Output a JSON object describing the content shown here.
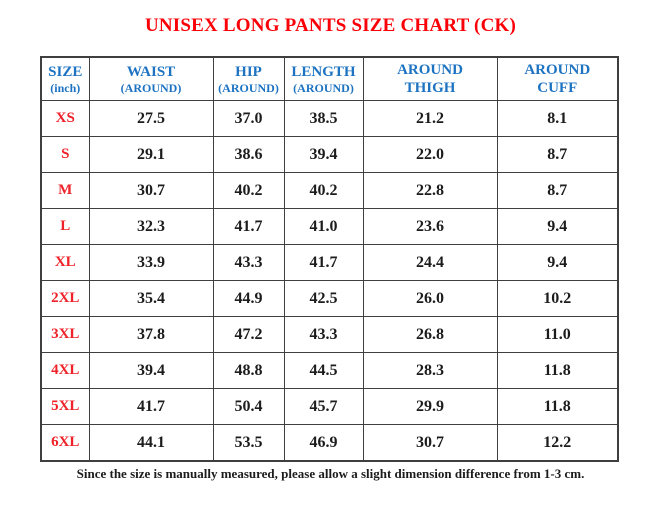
{
  "title": "UNISEX LONG PANTS SIZE CHART (CK)",
  "footer_note": "Since the size is manually measured, please allow a slight dimension difference from 1-3 cm.",
  "colors": {
    "title_red": "#fb0007",
    "size_label_red": "#ee2228",
    "header_blue": "#1d73c2",
    "cell_text": "#1c1c1c",
    "border": "#3f3f3f"
  },
  "table": {
    "headers": [
      {
        "line1": "SIZE",
        "line2": "(inch)"
      },
      {
        "line1": "WAIST",
        "line2": "(AROUND)"
      },
      {
        "line1": "HIP",
        "line2": "(AROUND)"
      },
      {
        "line1": "LENGTH",
        "line2": "(AROUND)"
      },
      {
        "line1": "AROUND",
        "line2": "THIGH"
      },
      {
        "line1": "AROUND",
        "line2": "CUFF"
      }
    ],
    "rows": [
      {
        "size": "XS",
        "waist": "27.5",
        "hip": "37.0",
        "length": "38.5",
        "thigh": "21.2",
        "cuff": "8.1"
      },
      {
        "size": "S",
        "waist": "29.1",
        "hip": "38.6",
        "length": "39.4",
        "thigh": "22.0",
        "cuff": "8.7"
      },
      {
        "size": "M",
        "waist": "30.7",
        "hip": "40.2",
        "length": "40.2",
        "thigh": "22.8",
        "cuff": "8.7"
      },
      {
        "size": "L",
        "waist": "32.3",
        "hip": "41.7",
        "length": "41.0",
        "thigh": "23.6",
        "cuff": "9.4"
      },
      {
        "size": "XL",
        "waist": "33.9",
        "hip": "43.3",
        "length": "41.7",
        "thigh": "24.4",
        "cuff": "9.4"
      },
      {
        "size": "2XL",
        "waist": "35.4",
        "hip": "44.9",
        "length": "42.5",
        "thigh": "26.0",
        "cuff": "10.2"
      },
      {
        "size": "3XL",
        "waist": "37.8",
        "hip": "47.2",
        "length": "43.3",
        "thigh": "26.8",
        "cuff": "11.0"
      },
      {
        "size": "4XL",
        "waist": "39.4",
        "hip": "48.8",
        "length": "44.5",
        "thigh": "28.3",
        "cuff": "11.8"
      },
      {
        "size": "5XL",
        "waist": "41.7",
        "hip": "50.4",
        "length": "45.7",
        "thigh": "29.9",
        "cuff": "11.8"
      },
      {
        "size": "6XL",
        "waist": "44.1",
        "hip": "53.5",
        "length": "46.9",
        "thigh": "30.7",
        "cuff": "12.2"
      }
    ]
  }
}
